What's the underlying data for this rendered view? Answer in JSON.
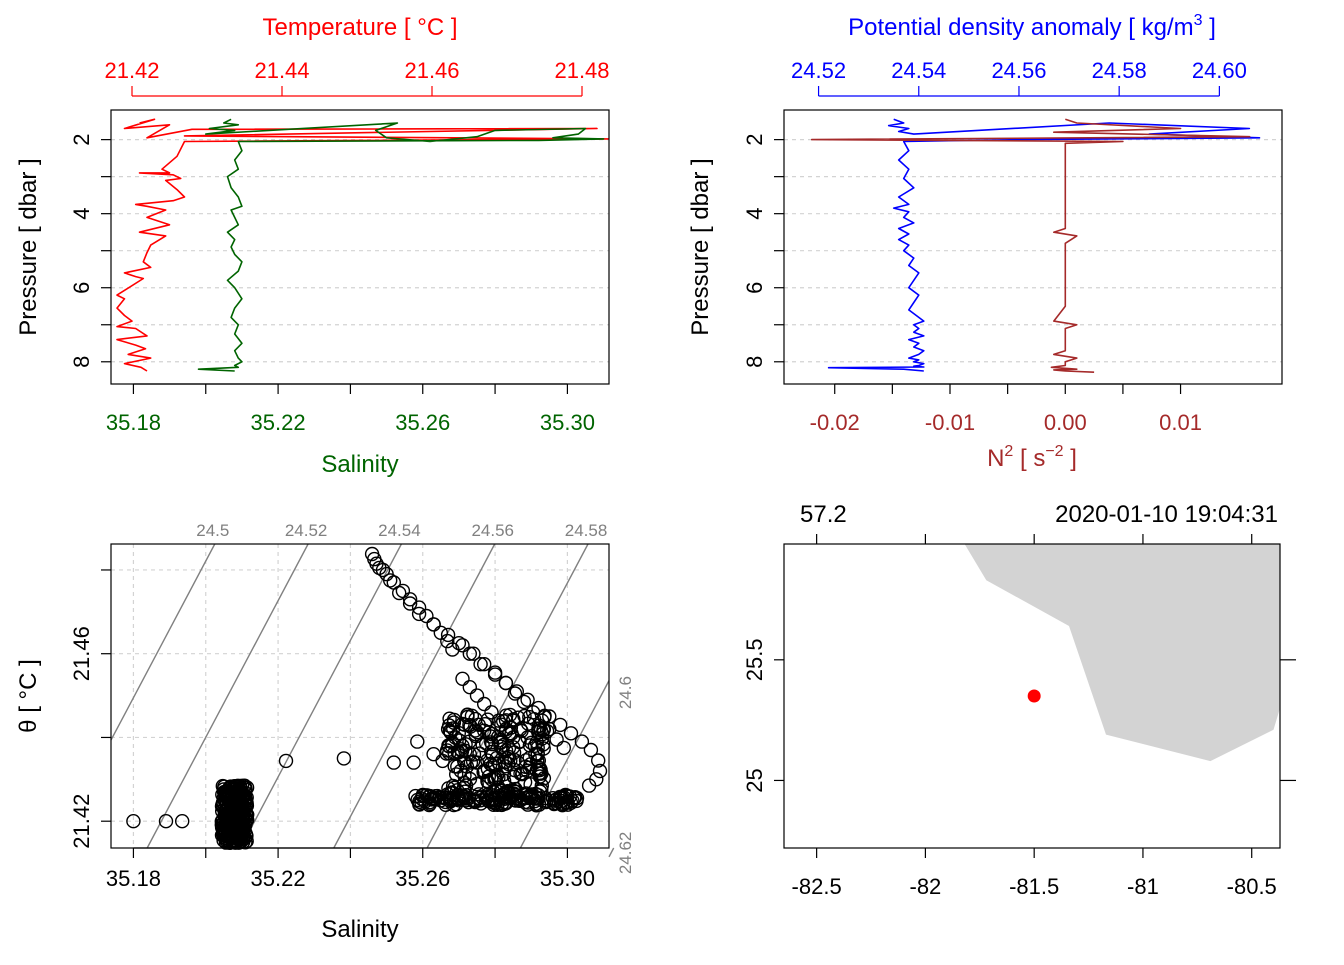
{
  "colors": {
    "temperature": "#ff0000",
    "salinity": "#006400",
    "density": "#0000ff",
    "n2": "#a52a2a",
    "grid": "#d3d3d3",
    "isopycnal": "#808080",
    "land": "#d3d3d3",
    "station": "#ff0000",
    "axis": "#000000"
  },
  "chart_data": [
    {
      "type": "line",
      "name": "temperature-salinity-profile",
      "top_axis_label": "Temperature [ °C ]",
      "bottom_axis_label": "Salinity",
      "ylabel": "Pressure [ dbar ]",
      "top_xlim": [
        21.4172,
        21.4836
      ],
      "top_ticks": [
        "21.42",
        "21.44",
        "21.46",
        "21.48"
      ],
      "bottom_xlim": [
        35.1738,
        35.3115
      ],
      "bottom_ticks": [
        "35.18",
        "35.22",
        "35.26",
        "35.30"
      ],
      "ylim": [
        8.6,
        1.2
      ],
      "yticks": [
        "2",
        "4",
        "6",
        "8"
      ],
      "grid": true,
      "series": [
        {
          "name": "Temperature",
          "axis": "top",
          "x": [
            21.421,
            21.423,
            21.419,
            21.425,
            21.422,
            21.428,
            21.482,
            21.427,
            21.4835,
            21.427,
            21.426,
            21.424,
            21.425,
            21.421,
            21.4255,
            21.4265,
            21.4245,
            21.426,
            21.427,
            21.4255,
            21.4205,
            21.422,
            21.4245,
            21.422,
            21.425,
            21.421,
            21.4245,
            21.4225,
            21.422,
            21.4215,
            21.4225,
            21.419,
            21.4205,
            21.4215,
            21.418,
            21.419,
            21.418,
            21.419,
            21.42,
            21.418,
            21.4205,
            21.422,
            21.418,
            21.4205,
            21.4218,
            21.4195,
            21.4225,
            21.419,
            21.4212,
            21.422
          ],
          "y": [
            1.55,
            1.45,
            1.7,
            1.6,
            1.95,
            1.72,
            1.7,
            1.9,
            1.98,
            2.05,
            2.45,
            2.8,
            2.9,
            2.9,
            2.95,
            3.05,
            3.1,
            3.35,
            3.55,
            3.65,
            3.75,
            3.8,
            3.9,
            4.1,
            4.3,
            4.5,
            4.6,
            4.85,
            5.05,
            5.3,
            5.45,
            5.6,
            5.7,
            5.75,
            6.2,
            6.3,
            6.55,
            6.75,
            6.9,
            7.05,
            7.1,
            7.3,
            7.4,
            7.55,
            7.65,
            7.8,
            7.9,
            8.05,
            8.15,
            8.25
          ]
        },
        {
          "name": "Salinity",
          "axis": "bottom",
          "x": [
            35.207,
            35.205,
            35.209,
            35.201,
            35.208,
            35.2,
            35.253,
            35.247,
            35.25,
            35.262,
            35.275,
            35.28,
            35.305,
            35.303,
            35.296,
            35.31,
            35.292,
            35.209,
            35.21,
            35.208,
            35.209,
            35.206,
            35.207,
            35.209,
            35.21,
            35.207,
            35.208,
            35.209,
            35.206,
            35.208,
            35.207,
            35.208,
            35.21,
            35.209,
            35.206,
            35.208,
            35.21,
            35.208,
            35.207,
            35.209,
            35.208,
            35.21,
            35.208,
            35.209,
            35.21,
            35.208,
            35.209,
            35.198,
            35.208
          ],
          "y": [
            1.45,
            1.55,
            1.6,
            1.7,
            1.75,
            1.85,
            1.55,
            1.75,
            1.95,
            2.05,
            1.92,
            1.75,
            1.7,
            1.85,
            1.95,
            1.98,
            2.02,
            2.05,
            2.3,
            2.55,
            2.8,
            3.0,
            3.3,
            3.55,
            3.8,
            3.9,
            4.1,
            4.3,
            4.5,
            4.7,
            4.9,
            5.1,
            5.3,
            5.55,
            5.8,
            6.0,
            6.3,
            6.55,
            6.8,
            7.0,
            7.25,
            7.5,
            7.7,
            7.9,
            8.0,
            8.1,
            8.15,
            8.2,
            8.25
          ]
        }
      ]
    },
    {
      "type": "line",
      "name": "density-n2-profile",
      "top_axis_label": "Potential density anomaly [ kg/m",
      "top_axis_label_sup": "3",
      "top_axis_label_end": " ]",
      "bottom_axis_label": "N",
      "bottom_axis_label_sup": "2",
      "bottom_axis_label_unit": " [ s",
      "bottom_axis_label_unit_sup": "−2",
      "bottom_axis_label_end": " ]",
      "ylabel": "Pressure [ dbar ]",
      "top_xlim": [
        24.5131,
        24.6125
      ],
      "top_ticks": [
        "24.52",
        "24.54",
        "24.56",
        "24.58",
        "24.60"
      ],
      "bottom_xlim": [
        -0.0244,
        0.0188
      ],
      "bottom_ticks": [
        "-0.02",
        "-0.01",
        "0.00",
        "0.01"
      ],
      "ylim": [
        8.6,
        1.2
      ],
      "yticks": [
        "2",
        "4",
        "6",
        "8"
      ],
      "grid": true,
      "series": [
        {
          "name": "Potential density anomaly",
          "axis": "top",
          "x": [
            24.535,
            24.537,
            24.534,
            24.538,
            24.536,
            24.539,
            24.578,
            24.606,
            24.586,
            24.608,
            24.56,
            24.537,
            24.538,
            24.536,
            24.538,
            24.537,
            24.539,
            24.536,
            24.538,
            24.535,
            24.538,
            24.537,
            24.539,
            24.536,
            24.538,
            24.536,
            24.538,
            24.537,
            24.539,
            24.538,
            24.54,
            24.539,
            24.538,
            24.54,
            24.539,
            24.538,
            24.54,
            24.541,
            24.539,
            24.54,
            24.539,
            24.541,
            24.538,
            24.54,
            24.539,
            24.541,
            24.54,
            24.538,
            24.54,
            24.539,
            24.541,
            24.54,
            24.539,
            24.541,
            24.522,
            24.537,
            24.541
          ],
          "y": [
            1.45,
            1.55,
            1.62,
            1.7,
            1.78,
            1.85,
            1.55,
            1.7,
            1.85,
            1.95,
            2.0,
            2.05,
            2.3,
            2.55,
            2.8,
            3.05,
            3.3,
            3.55,
            3.75,
            3.85,
            3.95,
            4.1,
            4.25,
            4.4,
            4.55,
            4.7,
            4.85,
            5.0,
            5.2,
            5.4,
            5.6,
            5.8,
            6.0,
            6.2,
            6.4,
            6.6,
            6.8,
            6.9,
            7.0,
            7.1,
            7.2,
            7.3,
            7.4,
            7.5,
            7.6,
            7.7,
            7.8,
            7.9,
            7.95,
            8.0,
            8.05,
            8.1,
            8.12,
            8.14,
            8.16,
            8.2,
            8.25
          ]
        },
        {
          "name": "N2",
          "axis": "bottom",
          "x": [
            0.0,
            0.001,
            0.01,
            -0.001,
            0.016,
            -0.022,
            0.005,
            0.0,
            0.0,
            0.0,
            0.0,
            0.0,
            0.0,
            0.0,
            0.0,
            -0.001,
            0.001,
            0.0,
            0.0,
            0.0,
            0.0,
            0.0,
            0.0,
            0.0,
            -0.001,
            0.001,
            0.0,
            0.0,
            0.0,
            0.0,
            0.0,
            -0.001,
            0.001,
            0.0,
            0.0,
            0.0,
            -0.0012,
            0.001,
            -0.001,
            0.0,
            0.0025
          ],
          "y": [
            1.45,
            1.55,
            1.7,
            1.8,
            1.92,
            2.0,
            2.05,
            2.1,
            2.5,
            3.0,
            3.5,
            3.8,
            4.0,
            4.2,
            4.4,
            4.5,
            4.6,
            4.8,
            5.1,
            5.4,
            5.7,
            6.0,
            6.2,
            6.5,
            6.9,
            7.0,
            7.1,
            7.3,
            7.45,
            7.55,
            7.7,
            7.8,
            7.9,
            8.0,
            8.05,
            8.1,
            8.15,
            8.2,
            8.22,
            8.25,
            8.28
          ]
        }
      ]
    },
    {
      "type": "scatter",
      "name": "ts-diagram",
      "xlabel": "Salinity",
      "ylabel_symbol": "θ",
      "ylabel_unit": " [ °C ]",
      "xlim": [
        35.1738,
        35.3115
      ],
      "xticks": [
        "35.18",
        "35.22",
        "35.26",
        "35.30"
      ],
      "ylim": [
        21.4136,
        21.4862
      ],
      "yticks": [
        "21.42",
        "21.46"
      ],
      "grid": true,
      "isopycnals": [
        {
          "label": "24.5",
          "label_side": "top",
          "x_bottom": 35.158,
          "x_top": 35.2025
        },
        {
          "label": "24.52",
          "label_side": "top",
          "x_bottom": 35.1838,
          "x_top": 35.2283
        },
        {
          "label": "24.54",
          "label_side": "top",
          "x_bottom": 35.2096,
          "x_top": 35.2541
        },
        {
          "label": "24.56",
          "label_side": "top",
          "x_bottom": 35.2354,
          "x_top": 35.2799
        },
        {
          "label": "24.58",
          "label_side": "top",
          "x_bottom": 35.2612,
          "x_top": 35.3057
        },
        {
          "label": "24.6",
          "label_side": "right",
          "x_bottom": 35.287,
          "x_top": 35.3315
        },
        {
          "label": "24.62",
          "label_side": "right",
          "x_bottom": 35.3128,
          "x_top": 35.3573
        }
      ],
      "clusters": [
        {
          "sx": [
            35.2044,
            35.2115
          ],
          "t": [
            21.4148,
            21.4285
          ],
          "count": 300
        },
        {
          "sx": [
            35.2585,
            35.3035
          ],
          "t": [
            21.4238,
            21.4265
          ],
          "count": 120
        },
        {
          "sx": [
            35.2665,
            35.2945
          ],
          "t": [
            21.4255,
            21.446
          ],
          "count": 200
        }
      ],
      "x": [
        35.18,
        35.189,
        35.1935,
        35.2222,
        35.2382,
        35.252,
        35.2575,
        35.2655,
        35.246,
        35.2466,
        35.2472,
        35.248,
        35.25,
        35.252,
        35.2545,
        35.2565,
        35.259,
        35.261,
        35.263,
        35.265,
        35.2668,
        35.2682,
        35.249,
        35.251,
        35.2535,
        35.2565,
        35.259,
        35.263,
        35.267,
        35.27,
        35.273,
        35.276,
        35.28,
        35.283,
        35.286,
        35.289,
        35.292,
        35.295,
        35.298,
        35.301,
        35.304,
        35.3065,
        35.3085,
        35.309,
        35.308,
        35.306,
        35.271,
        35.274,
        35.277,
        35.28,
        35.283,
        35.2855,
        35.288,
        35.2905,
        35.293,
        35.295,
        35.297,
        35.299,
        35.2585,
        35.263,
        35.268,
        35.258,
        35.26,
        35.262,
        35.264,
        35.266,
        35.268,
        35.27,
        35.272,
        35.274,
        35.276,
        35.278,
        35.28,
        35.282,
        35.284,
        35.286,
        35.288,
        35.29,
        35.292,
        35.294,
        35.296,
        35.298,
        35.3,
        35.267,
        35.269,
        35.271,
        35.273,
        35.275,
        35.277,
        35.279,
        35.281,
        35.283,
        35.285,
        35.287,
        35.289,
        35.291,
        35.271,
        35.273,
        35.275,
        35.277,
        35.279,
        35.281,
        35.283,
        35.285
      ],
      "y": [
        21.42,
        21.42,
        21.42,
        21.4344,
        21.435,
        21.434,
        21.434,
        21.4344,
        21.4838,
        21.4826,
        21.4815,
        21.4805,
        21.479,
        21.477,
        21.475,
        21.473,
        21.471,
        21.469,
        21.467,
        21.465,
        21.463,
        21.461,
        21.48,
        21.4775,
        21.4745,
        21.472,
        21.4695,
        21.467,
        21.4645,
        21.4625,
        21.46,
        21.4575,
        21.455,
        21.453,
        21.451,
        21.449,
        21.447,
        21.445,
        21.443,
        21.441,
        21.439,
        21.437,
        21.4345,
        21.432,
        21.43,
        21.4285,
        21.462,
        21.46,
        21.4575,
        21.4555,
        21.453,
        21.4505,
        21.4485,
        21.446,
        21.444,
        21.442,
        21.4395,
        21.4375,
        21.439,
        21.436,
        21.438,
        21.426,
        21.426,
        21.426,
        21.426,
        21.4255,
        21.425,
        21.425,
        21.425,
        21.425,
        21.425,
        21.425,
        21.425,
        21.4255,
        21.4255,
        21.4255,
        21.4255,
        21.4255,
        21.4255,
        21.4255,
        21.4255,
        21.4255,
        21.426,
        21.442,
        21.44,
        21.438,
        21.436,
        21.434,
        21.432,
        21.43,
        21.428,
        21.427,
        21.444,
        21.442,
        21.44,
        21.438,
        21.454,
        21.452,
        21.45,
        21.448,
        21.446,
        21.444,
        21.442,
        21.44
      ]
    },
    {
      "type": "map",
      "name": "station-map",
      "top_left_label": "57.2",
      "top_right_label": "2020-01-10 19:04:31",
      "xlim": [
        -82.65,
        -80.37
      ],
      "xticks": [
        "-82.5",
        "-82",
        "-81.5",
        "-81",
        "-80.5"
      ],
      "ylim": [
        24.72,
        25.98
      ],
      "yticks": [
        "25",
        "25.5"
      ],
      "land_polygon": {
        "lon": [
          -81.82,
          -81.72,
          -81.34,
          -81.17,
          -80.69,
          -80.4,
          -80.37,
          -80.37,
          -81.82
        ],
        "lat": [
          25.98,
          25.83,
          25.64,
          25.19,
          25.08,
          25.21,
          25.3,
          25.98,
          25.98
        ]
      },
      "station": {
        "lon": -81.5,
        "lat": 25.35
      }
    }
  ]
}
